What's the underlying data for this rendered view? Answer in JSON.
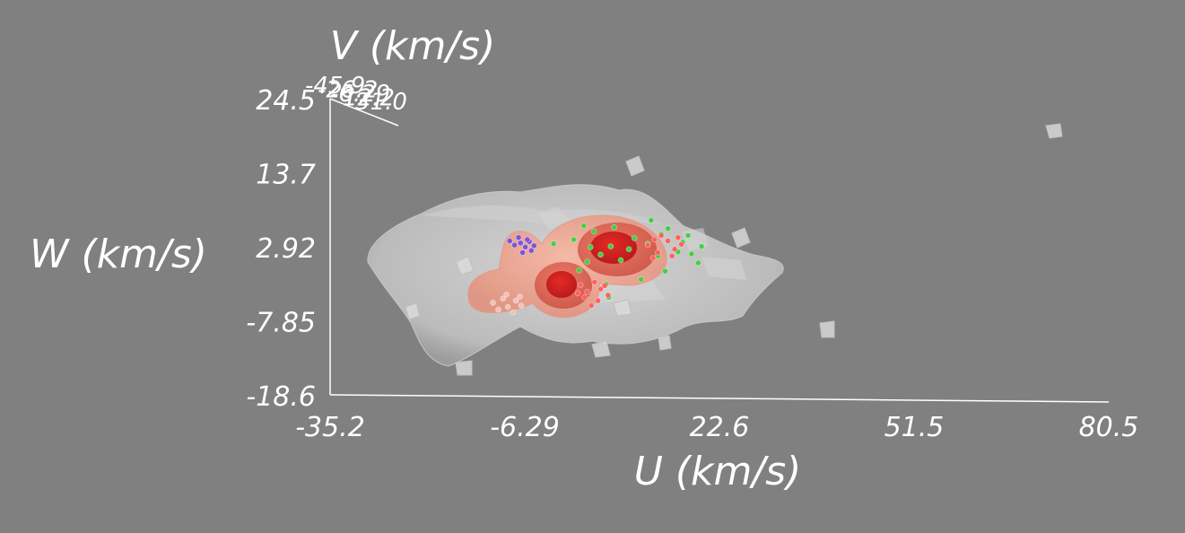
{
  "chart_data": {
    "type": "scatter",
    "projection": "3d-isosurface",
    "title": "",
    "xlabel": "U (km/s)",
    "ylabel": "W (km/s)",
    "zlabel": "V (km/s)",
    "xlim": [
      -35.2,
      80.5
    ],
    "ylim": [
      -18.6,
      24.5
    ],
    "x_ticks": [
      "-35.2",
      "-6.29",
      "22.6",
      "51.5",
      "80.5"
    ],
    "y_ticks": [
      "-18.6",
      "-7.85",
      "2.92",
      "13.7",
      "24.5"
    ],
    "z_ticks": [
      "-45.9",
      "-26.2",
      "-6.29",
      "12.2",
      "31.0"
    ],
    "grid": false,
    "legend": "none",
    "colors": {
      "background": "#808080",
      "outer_surface": "#d8d8d8",
      "mid_surface": "#f0a08a",
      "inner_surface": "#d94a3a",
      "core_surface": "#c82020",
      "green_points": "#44d044",
      "purple_points": "#7755dd",
      "pink_points": "#f2c2b8",
      "red_points": "#ff6060"
    },
    "series": [
      {
        "marker": "green",
        "points": [
          [
            1.0,
            4.0
          ],
          [
            2.5,
            6.0
          ],
          [
            4.0,
            5.2
          ],
          [
            3.0,
            0.8
          ],
          [
            5.0,
            1.8
          ],
          [
            1.8,
            -0.5
          ],
          [
            6.5,
            3.0
          ],
          [
            8.0,
            1.0
          ],
          [
            5.8,
            -2.5
          ],
          [
            10.0,
            4.2
          ],
          [
            12.5,
            6.8
          ],
          [
            14.0,
            4.8
          ],
          [
            16.5,
            2.2
          ],
          [
            18.0,
            4.6
          ],
          [
            19.5,
            0.6
          ],
          [
            11.0,
            -1.8
          ],
          [
            13.5,
            1.6
          ],
          [
            15.0,
            5.6
          ],
          [
            17.2,
            3.6
          ],
          [
            20.0,
            3.0
          ],
          [
            -2.0,
            3.4
          ],
          [
            7.0,
            5.8
          ],
          [
            9.2,
            2.6
          ],
          [
            14.6,
            -0.6
          ],
          [
            6.2,
            -4.4
          ],
          [
            3.5,
            2.9
          ],
          [
            18.5,
            1.9
          ],
          [
            12.0,
            3.4
          ]
        ]
      },
      {
        "marker": "purple",
        "points": [
          [
            -8.5,
            3.8
          ],
          [
            -7.8,
            3.2
          ],
          [
            -6.9,
            3.5
          ],
          [
            -6.2,
            2.9
          ],
          [
            -5.6,
            3.7
          ],
          [
            -5.3,
            2.4
          ],
          [
            -6.6,
            2.1
          ],
          [
            -7.2,
            4.3
          ],
          [
            -5.9,
            4.0
          ],
          [
            -4.9,
            3.1
          ]
        ]
      },
      {
        "marker": "pink",
        "points": [
          [
            -11.0,
            -5.2
          ],
          [
            -9.5,
            -4.6
          ],
          [
            -8.8,
            -5.8
          ],
          [
            -7.6,
            -4.9
          ],
          [
            -10.2,
            -6.2
          ],
          [
            -8.0,
            -6.6
          ],
          [
            -6.8,
            -5.6
          ],
          [
            -9.0,
            -4.0
          ],
          [
            -7.0,
            -4.3
          ]
        ]
      },
      {
        "marker": "red",
        "points": [
          [
            2.0,
            -2.6
          ],
          [
            3.0,
            -3.6
          ],
          [
            4.1,
            -2.2
          ],
          [
            5.0,
            -3.2
          ],
          [
            2.6,
            -4.4
          ],
          [
            4.6,
            -4.9
          ],
          [
            3.6,
            -5.6
          ],
          [
            5.6,
            -2.7
          ],
          [
            1.6,
            -3.8
          ],
          [
            6.1,
            -4.1
          ],
          [
            12.0,
            3.2
          ],
          [
            13.5,
            2.1
          ],
          [
            15.0,
            3.8
          ],
          [
            16.0,
            2.6
          ],
          [
            14.0,
            4.6
          ],
          [
            12.8,
            1.3
          ],
          [
            15.6,
            1.6
          ],
          [
            17.0,
            3.3
          ],
          [
            13.0,
            4.0
          ],
          [
            16.5,
            4.3
          ]
        ]
      }
    ]
  }
}
